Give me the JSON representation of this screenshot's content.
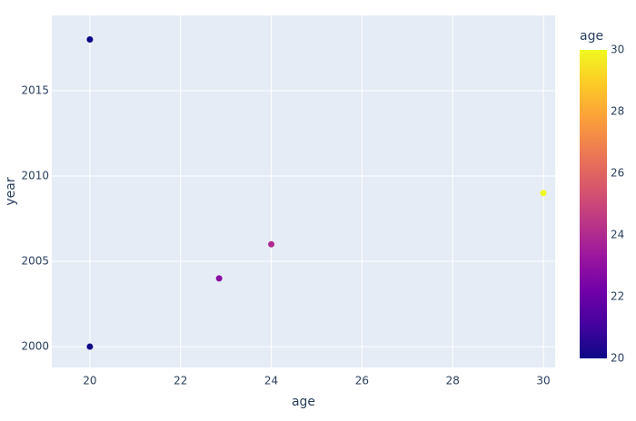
{
  "chart_data": {
    "type": "scatter",
    "x_label": "age",
    "y_label": "year",
    "series": [
      {
        "x": [
          20,
          20,
          22.85,
          24,
          30
        ],
        "values": [
          2018,
          2000,
          2004,
          2006,
          2009
        ]
      }
    ],
    "xlim": [
      19.16,
      30.26
    ],
    "xticks": [
      20,
      22,
      24,
      26,
      28,
      30
    ],
    "ylim": [
      1998.78,
      2019.41
    ],
    "yticks": [
      2000,
      2005,
      2010,
      2015
    ],
    "grid": true,
    "colorscale": [
      "#0d0887",
      "#46039f",
      "#7201a8",
      "#9c179e",
      "#bd3786",
      "#d8576b",
      "#ed7953",
      "#fb9f3a",
      "#fdca26",
      "#f0f921"
    ],
    "colorbar": {
      "title": "age",
      "lim": [
        20,
        30
      ],
      "ticks": [
        20,
        22,
        24,
        26,
        28,
        30
      ]
    }
  }
}
